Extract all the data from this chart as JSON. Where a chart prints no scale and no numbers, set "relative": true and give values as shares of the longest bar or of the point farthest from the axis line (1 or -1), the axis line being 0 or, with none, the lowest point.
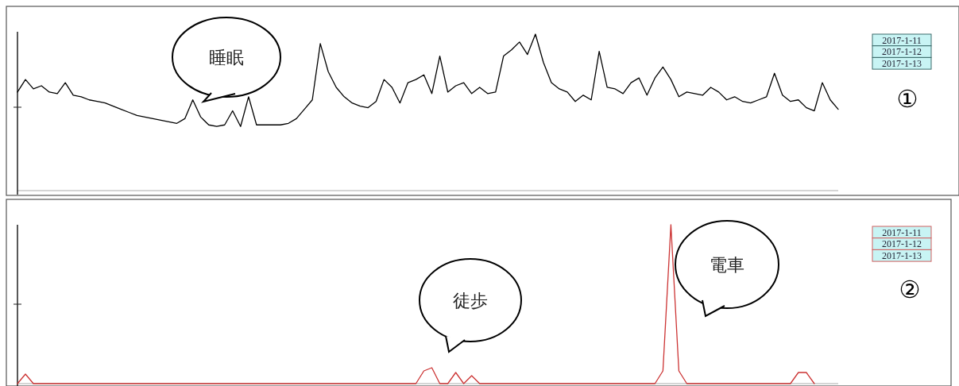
{
  "chart_data": [
    {
      "type": "line",
      "relative": true,
      "color": "#000000",
      "categories": [
        null,
        null,
        null,
        null,
        null,
        null,
        null,
        null,
        null,
        null,
        null,
        null,
        null,
        null,
        null,
        null,
        null,
        null,
        null,
        null,
        null,
        null,
        null,
        null,
        null,
        null,
        null,
        null,
        null,
        null,
        null,
        null,
        null,
        null,
        null,
        null,
        null,
        null,
        null,
        null,
        null,
        null,
        null,
        null,
        null,
        null,
        null,
        null,
        null,
        null,
        null,
        null,
        null,
        null,
        null,
        null,
        null,
        null,
        null,
        null,
        null,
        null,
        null,
        null,
        null,
        null,
        null,
        null,
        null,
        null,
        null,
        null,
        null,
        null,
        null,
        null,
        null,
        null,
        null,
        null,
        null,
        null,
        null,
        null,
        null,
        null,
        null,
        null,
        null,
        null,
        null,
        null,
        null,
        null,
        null,
        null,
        null,
        null,
        null,
        null,
        null,
        null,
        null,
        null
      ],
      "values": [
        0.63,
        0.71,
        0.65,
        0.67,
        0.63,
        0.62,
        0.69,
        0.61,
        0.6,
        0.58,
        0.57,
        0.56,
        0.54,
        0.52,
        0.5,
        0.48,
        0.47,
        0.46,
        0.45,
        0.44,
        0.43,
        0.46,
        0.58,
        0.47,
        0.42,
        0.41,
        0.42,
        0.51,
        0.41,
        0.6,
        0.42,
        0.42,
        0.42,
        0.42,
        0.43,
        0.46,
        0.52,
        0.58,
        0.94,
        0.76,
        0.66,
        0.6,
        0.56,
        0.54,
        0.53,
        0.57,
        0.71,
        0.66,
        0.56,
        0.69,
        0.71,
        0.74,
        0.62,
        0.86,
        0.63,
        0.67,
        0.69,
        0.62,
        0.66,
        0.62,
        0.63,
        0.86,
        0.9,
        0.95,
        0.87,
        1,
        0.82,
        0.69,
        0.65,
        0.63,
        0.57,
        0.61,
        0.58,
        0.89,
        0.66,
        0.65,
        0.62,
        0.69,
        0.72,
        0.61,
        0.72,
        0.79,
        0.71,
        0.6,
        0.63,
        0.62,
        0.61,
        0.66,
        0.63,
        0.58,
        0.6,
        0.57,
        0.56,
        0.58,
        0.6,
        0.75,
        0.61,
        0.57,
        0.58,
        0.53,
        0.51,
        0.69,
        0.58,
        0.52
      ],
      "annotations": [
        "睡眠",
        "2017-1-11",
        "2017-1-12",
        "2017-1-13",
        "①"
      ]
    },
    {
      "type": "line",
      "relative": true,
      "color": "#cc3333",
      "categories": [
        null,
        null,
        null,
        null,
        null,
        null,
        null,
        null,
        null,
        null,
        null,
        null,
        null,
        null,
        null,
        null,
        null,
        null,
        null,
        null,
        null,
        null,
        null,
        null,
        null,
        null,
        null,
        null,
        null,
        null,
        null,
        null,
        null,
        null,
        null,
        null,
        null,
        null,
        null,
        null,
        null,
        null,
        null,
        null,
        null,
        null,
        null,
        null,
        null,
        null,
        null,
        null,
        null,
        null,
        null,
        null,
        null,
        null,
        null,
        null,
        null,
        null,
        null,
        null,
        null,
        null,
        null,
        null,
        null,
        null,
        null,
        null,
        null,
        null,
        null,
        null,
        null,
        null,
        null,
        null,
        null,
        null,
        null,
        null,
        null,
        null,
        null,
        null,
        null,
        null,
        null,
        null,
        null,
        null,
        null,
        null,
        null,
        null,
        null,
        null,
        null,
        null,
        null,
        null
      ],
      "values": [
        0,
        0.06,
        0,
        0,
        0,
        0,
        0,
        0,
        0,
        0,
        0,
        0,
        0,
        0,
        0,
        0,
        0,
        0,
        0,
        0,
        0,
        0,
        0,
        0,
        0,
        0,
        0,
        0,
        0,
        0,
        0,
        0,
        0,
        0,
        0,
        0,
        0,
        0,
        0,
        0,
        0,
        0,
        0,
        0,
        0,
        0,
        0,
        0,
        0,
        0,
        0,
        0.08,
        0.1,
        0,
        0,
        0.07,
        0,
        0.05,
        0,
        0,
        0,
        0,
        0,
        0,
        0,
        0,
        0,
        0,
        0,
        0,
        0,
        0,
        0,
        0,
        0,
        0,
        0,
        0,
        0,
        0,
        0,
        0.08,
        1,
        0.08,
        0,
        0,
        0,
        0,
        0,
        0,
        0,
        0,
        0,
        0,
        0,
        0,
        0,
        0,
        0.07,
        0.07,
        0,
        null,
        null,
        null
      ],
      "annotations": [
        "徒歩",
        "電車",
        "2017-1-11",
        "2017-1-12",
        "2017-1-13",
        "②"
      ]
    }
  ]
}
